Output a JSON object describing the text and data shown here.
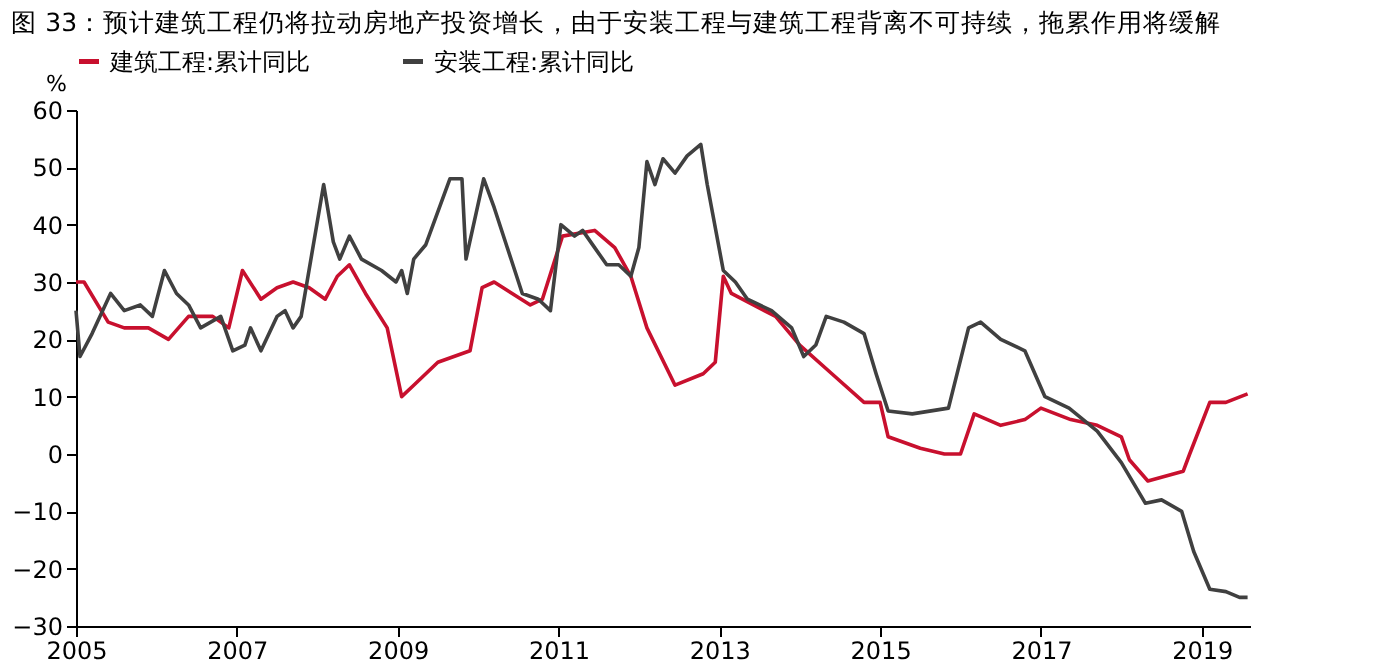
{
  "chart_data": {
    "type": "line",
    "title": "图 33：预计建筑工程仍将拉动房地产投资增长，由于安装工程与建筑工程背离不可持续，拖累作用将缓解",
    "ylabel": "%",
    "xlim": [
      2005,
      2019.6
    ],
    "xticks": [
      2005,
      2007,
      2009,
      2011,
      2013,
      2015,
      2017,
      2019
    ],
    "ylim": [
      -30,
      60
    ],
    "yticks": [
      -30,
      -20,
      -10,
      0,
      10,
      20,
      30,
      40,
      50,
      60
    ],
    "grid": false,
    "legend": "top",
    "line_style": "solid",
    "marker": "none",
    "series": [
      {
        "name": "建筑工程:累计同比",
        "color": "#c8102e",
        "x": [
          2005.0,
          2005.1,
          2005.4,
          2005.6,
          2005.9,
          2006.15,
          2006.4,
          2006.7,
          2006.9,
          2007.07,
          2007.3,
          2007.5,
          2007.7,
          2007.9,
          2008.1,
          2008.25,
          2008.4,
          2008.6,
          2008.87,
          2009.05,
          2009.2,
          2009.5,
          2009.9,
          2010.05,
          2010.2,
          2010.65,
          2010.8,
          2011.05,
          2011.45,
          2011.7,
          2011.9,
          2012.1,
          2012.45,
          2012.8,
          2012.95,
          2013.05,
          2013.15,
          2013.7,
          2014.0,
          2014.4,
          2014.8,
          2015.0,
          2015.1,
          2015.5,
          2015.8,
          2016.0,
          2016.17,
          2016.5,
          2016.8,
          2017.0,
          2017.37,
          2017.7,
          2018.0,
          2018.1,
          2018.33,
          2018.77,
          2018.85,
          2019.1,
          2019.3,
          2019.57
        ],
        "values": [
          30,
          30,
          23,
          22,
          22,
          20,
          24,
          24,
          22,
          32,
          27,
          29,
          30,
          29,
          27,
          31,
          33,
          28,
          22,
          10,
          12,
          16,
          18,
          29,
          30,
          26,
          27,
          38,
          39,
          36,
          31,
          22,
          12,
          14,
          16,
          31,
          28,
          24,
          19,
          14,
          9,
          9,
          3,
          1,
          0,
          0,
          7,
          5,
          6,
          8,
          6,
          5,
          3,
          -1,
          -4.7,
          -3,
          0,
          9,
          9,
          10.5
        ]
      },
      {
        "name": "安装工程:累计同比",
        "color": "#404040",
        "x": [
          2005.0,
          2005.05,
          2005.2,
          2005.43,
          2005.6,
          2005.8,
          2005.95,
          2006.1,
          2006.25,
          2006.4,
          2006.55,
          2006.8,
          2006.95,
          2007.1,
          2007.17,
          2007.3,
          2007.5,
          2007.6,
          2007.7,
          2007.8,
          2008.08,
          2008.2,
          2008.28,
          2008.4,
          2008.55,
          2008.8,
          2008.98,
          2009.05,
          2009.12,
          2009.2,
          2009.35,
          2009.65,
          2009.8,
          2009.85,
          2010.07,
          2010.2,
          2010.55,
          2010.75,
          2010.9,
          2011.03,
          2011.2,
          2011.3,
          2011.45,
          2011.6,
          2011.75,
          2011.9,
          2012.0,
          2012.1,
          2012.2,
          2012.3,
          2012.45,
          2012.6,
          2012.77,
          2012.85,
          2013.05,
          2013.2,
          2013.35,
          2013.65,
          2013.9,
          2014.05,
          2014.2,
          2014.33,
          2014.55,
          2014.8,
          2014.95,
          2015.1,
          2015.4,
          2015.85,
          2016.1,
          2016.25,
          2016.5,
          2016.8,
          2017.05,
          2017.35,
          2017.7,
          2018.0,
          2018.3,
          2018.5,
          2018.75,
          2018.9,
          2019.1,
          2019.3,
          2019.47,
          2019.57
        ],
        "values": [
          25,
          17,
          21,
          28,
          25,
          26,
          24,
          32,
          28,
          26,
          22,
          24,
          18,
          19,
          22,
          18,
          24,
          25,
          22,
          24,
          47,
          37,
          34,
          38,
          34,
          32,
          30,
          32,
          28,
          34,
          36.5,
          48,
          48,
          34,
          48,
          43,
          28,
          27,
          25,
          40,
          38,
          39,
          36,
          33,
          33,
          31,
          36,
          51,
          47,
          51.5,
          49,
          52,
          54,
          47,
          32,
          30,
          27,
          25,
          22,
          17,
          19,
          24,
          23,
          21,
          14,
          7.5,
          7,
          8,
          22,
          23,
          20,
          18,
          10,
          8,
          4,
          -1.5,
          -8.6,
          -8,
          -10,
          -17,
          -23.6,
          -24,
          -25,
          -25
        ]
      }
    ]
  }
}
